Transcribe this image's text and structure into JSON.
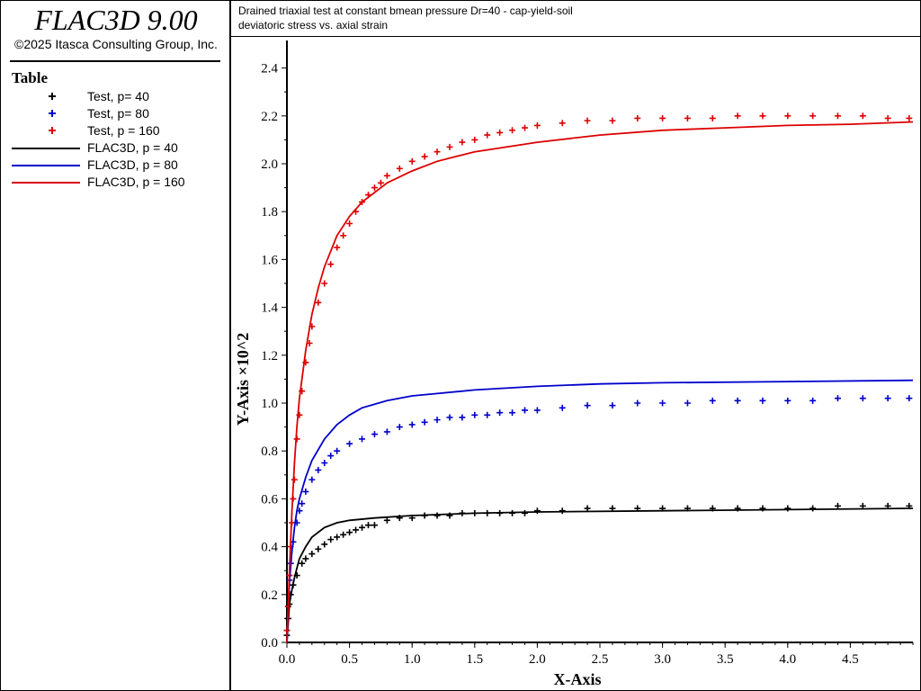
{
  "app": {
    "title": "FLAC3D 9.00",
    "copyright": "©2025 Itasca Consulting Group, Inc."
  },
  "legend": {
    "heading": "Table",
    "items": [
      {
        "label": "Test, p= 40",
        "kind": "marker",
        "color": "#000000"
      },
      {
        "label": "Test, p= 80",
        "kind": "marker",
        "color": "#0000cc"
      },
      {
        "label": "Test, p = 160",
        "kind": "marker",
        "color": "#dd0000"
      },
      {
        "label": "FLAC3D, p = 40",
        "kind": "line",
        "color": "#000000"
      },
      {
        "label": "FLAC3D, p = 80",
        "kind": "line",
        "color": "#0000cc"
      },
      {
        "label": "FLAC3D, p = 160",
        "kind": "line",
        "color": "#dd0000"
      }
    ]
  },
  "chart_data": {
    "type": "scatter",
    "title": "Drained triaxial test at constant bmean pressure Dr=40 - cap-yield-soil",
    "subtitle": "deviatoric stress vs. axial strain",
    "xlabel": "X-Axis",
    "ylabel": "Y-Axis ×10^2",
    "xlim": [
      0,
      5
    ],
    "ylim": [
      0,
      2.5
    ],
    "xticks": [
      0.0,
      0.5,
      1.0,
      1.5,
      2.0,
      2.5,
      3.0,
      3.5,
      4.0,
      4.5
    ],
    "xtick_labels": [
      "0.0",
      "0.5",
      "1.0",
      "1.5",
      "2.0",
      "2.5",
      "3.0",
      "3.5",
      "4.0",
      "4.5"
    ],
    "yticks": [
      0.0,
      0.2,
      0.4,
      0.6,
      0.8,
      1.0,
      1.2,
      1.4,
      1.6,
      1.8,
      2.0,
      2.2,
      2.4
    ],
    "ytick_labels": [
      "0.0",
      "0.2",
      "0.4",
      "0.6",
      "0.8",
      "1.0",
      "1.2",
      "1.4",
      "1.6",
      "1.8",
      "2.0",
      "2.2",
      "2.4"
    ],
    "series": [
      {
        "name": "Test, p= 40",
        "kind": "scatter",
        "color": "#000000",
        "x": [
          0.0,
          0.01,
          0.02,
          0.03,
          0.05,
          0.08,
          0.12,
          0.15,
          0.2,
          0.25,
          0.3,
          0.35,
          0.4,
          0.45,
          0.5,
          0.55,
          0.6,
          0.65,
          0.7,
          0.8,
          0.9,
          1.0,
          1.1,
          1.2,
          1.3,
          1.4,
          1.5,
          1.6,
          1.7,
          1.8,
          1.9,
          2.0,
          2.2,
          2.4,
          2.6,
          2.8,
          3.0,
          3.2,
          3.4,
          3.6,
          3.8,
          4.0,
          4.2,
          4.4,
          4.6,
          4.8,
          4.97
        ],
        "y": [
          0.03,
          0.1,
          0.16,
          0.2,
          0.24,
          0.28,
          0.33,
          0.35,
          0.37,
          0.39,
          0.41,
          0.43,
          0.44,
          0.45,
          0.46,
          0.47,
          0.48,
          0.49,
          0.49,
          0.51,
          0.52,
          0.52,
          0.53,
          0.53,
          0.53,
          0.54,
          0.54,
          0.54,
          0.54,
          0.54,
          0.54,
          0.55,
          0.55,
          0.56,
          0.56,
          0.56,
          0.56,
          0.56,
          0.56,
          0.56,
          0.56,
          0.56,
          0.56,
          0.57,
          0.57,
          0.57,
          0.57
        ]
      },
      {
        "name": "Test, p= 80",
        "kind": "scatter",
        "color": "#0000cc",
        "x": [
          0.0,
          0.01,
          0.02,
          0.03,
          0.05,
          0.08,
          0.1,
          0.12,
          0.15,
          0.2,
          0.25,
          0.3,
          0.35,
          0.4,
          0.5,
          0.6,
          0.7,
          0.8,
          0.9,
          1.0,
          1.1,
          1.2,
          1.3,
          1.4,
          1.5,
          1.6,
          1.7,
          1.8,
          1.9,
          2.0,
          2.2,
          2.4,
          2.6,
          2.8,
          3.0,
          3.2,
          3.4,
          3.6,
          3.8,
          4.0,
          4.2,
          4.4,
          4.6,
          4.8,
          4.97
        ],
        "y": [
          0.05,
          0.15,
          0.26,
          0.33,
          0.42,
          0.5,
          0.55,
          0.58,
          0.63,
          0.68,
          0.72,
          0.75,
          0.78,
          0.8,
          0.83,
          0.85,
          0.87,
          0.88,
          0.9,
          0.91,
          0.92,
          0.93,
          0.94,
          0.94,
          0.95,
          0.95,
          0.96,
          0.96,
          0.97,
          0.97,
          0.98,
          0.99,
          0.99,
          1.0,
          1.0,
          1.0,
          1.01,
          1.01,
          1.01,
          1.01,
          1.01,
          1.02,
          1.02,
          1.02,
          1.02
        ]
      },
      {
        "name": "Test, p = 160",
        "kind": "scatter",
        "color": "#dd0000",
        "x": [
          0.0,
          0.01,
          0.02,
          0.03,
          0.04,
          0.05,
          0.06,
          0.08,
          0.1,
          0.12,
          0.15,
          0.18,
          0.2,
          0.25,
          0.3,
          0.35,
          0.4,
          0.45,
          0.5,
          0.55,
          0.6,
          0.65,
          0.7,
          0.75,
          0.8,
          0.9,
          1.0,
          1.1,
          1.2,
          1.3,
          1.4,
          1.5,
          1.6,
          1.7,
          1.8,
          1.9,
          2.0,
          2.2,
          2.4,
          2.6,
          2.8,
          3.0,
          3.2,
          3.4,
          3.6,
          3.8,
          4.0,
          4.2,
          4.4,
          4.6,
          4.8,
          4.97
        ],
        "y": [
          0.05,
          0.15,
          0.28,
          0.4,
          0.5,
          0.6,
          0.68,
          0.85,
          0.95,
          1.05,
          1.17,
          1.25,
          1.32,
          1.42,
          1.5,
          1.58,
          1.65,
          1.7,
          1.75,
          1.8,
          1.84,
          1.87,
          1.9,
          1.92,
          1.95,
          1.98,
          2.01,
          2.03,
          2.05,
          2.07,
          2.09,
          2.1,
          2.12,
          2.13,
          2.14,
          2.15,
          2.16,
          2.17,
          2.18,
          2.18,
          2.19,
          2.19,
          2.19,
          2.19,
          2.2,
          2.2,
          2.2,
          2.2,
          2.2,
          2.2,
          2.19,
          2.19
        ]
      },
      {
        "name": "FLAC3D, p = 40",
        "kind": "line",
        "color": "#000000",
        "x": [
          0.0,
          0.02,
          0.04,
          0.06,
          0.08,
          0.1,
          0.15,
          0.2,
          0.3,
          0.4,
          0.5,
          0.7,
          1.0,
          1.5,
          2.0,
          3.0,
          4.0,
          5.0
        ],
        "y": [
          0.0,
          0.16,
          0.22,
          0.27,
          0.31,
          0.35,
          0.4,
          0.44,
          0.48,
          0.5,
          0.51,
          0.52,
          0.53,
          0.54,
          0.545,
          0.55,
          0.555,
          0.56
        ]
      },
      {
        "name": "FLAC3D, p = 80",
        "kind": "line",
        "color": "#0000cc",
        "x": [
          0.0,
          0.02,
          0.04,
          0.06,
          0.08,
          0.1,
          0.15,
          0.2,
          0.3,
          0.4,
          0.5,
          0.6,
          0.8,
          1.0,
          1.2,
          1.5,
          2.0,
          2.5,
          3.0,
          4.0,
          5.0
        ],
        "y": [
          0.0,
          0.25,
          0.38,
          0.48,
          0.55,
          0.6,
          0.69,
          0.76,
          0.85,
          0.91,
          0.95,
          0.98,
          1.01,
          1.03,
          1.04,
          1.055,
          1.07,
          1.08,
          1.085,
          1.09,
          1.095
        ]
      },
      {
        "name": "FLAC3D, p = 160",
        "kind": "line",
        "color": "#dd0000",
        "x": [
          0.0,
          0.02,
          0.04,
          0.06,
          0.08,
          0.1,
          0.15,
          0.2,
          0.25,
          0.3,
          0.4,
          0.5,
          0.6,
          0.8,
          1.0,
          1.2,
          1.5,
          2.0,
          2.5,
          3.0,
          3.5,
          4.0,
          4.5,
          5.0
        ],
        "y": [
          0.0,
          0.3,
          0.55,
          0.75,
          0.9,
          1.02,
          1.22,
          1.37,
          1.48,
          1.57,
          1.7,
          1.78,
          1.84,
          1.92,
          1.97,
          2.01,
          2.05,
          2.09,
          2.12,
          2.14,
          2.15,
          2.16,
          2.165,
          2.175
        ]
      }
    ]
  }
}
